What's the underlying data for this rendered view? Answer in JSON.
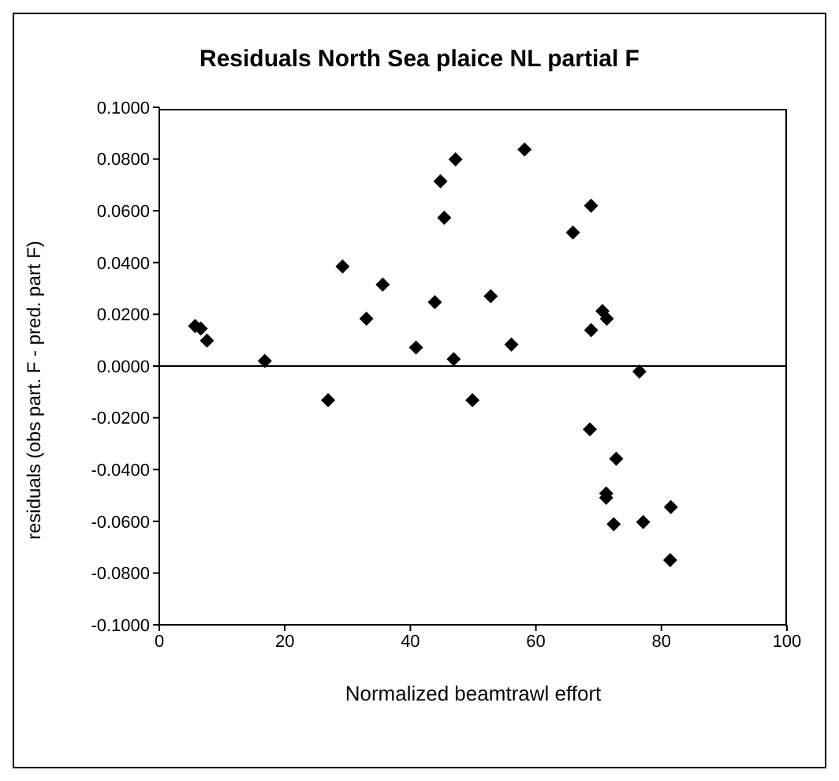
{
  "chart_data": {
    "type": "scatter",
    "title": "Residuals North Sea plaice NL partial F",
    "xlabel": "Normalized beamtrawl effort",
    "ylabel": "residuals (obs part. F - pred. part F)",
    "x": [
      5.7,
      6.6,
      7.6,
      16.8,
      26.9,
      29.2,
      33.0,
      35.6,
      40.9,
      43.9,
      44.8,
      45.4,
      47.2,
      46.9,
      49.9,
      52.8,
      56.1,
      58.2,
      65.9,
      68.8,
      68.8,
      70.6,
      71.3,
      76.5,
      68.6,
      72.8,
      71.2,
      71.2,
      72.4,
      77.1,
      81.5,
      81.4
    ],
    "series": [
      {
        "color": "#000000",
        "values": [
          0.0155,
          0.0145,
          0.0098,
          0.002,
          -0.0132,
          0.0385,
          0.0183,
          0.0315,
          0.0072,
          0.0247,
          0.0714,
          0.0573,
          0.0799,
          0.0027,
          -0.0132,
          0.027,
          0.0083,
          0.0837,
          0.0516,
          0.062,
          0.0139,
          0.0213,
          0.0183,
          -0.0021,
          -0.0245,
          -0.0358,
          -0.0492,
          -0.0509,
          -0.0611,
          -0.0603,
          -0.0545,
          -0.075
        ]
      }
    ],
    "xlim": [
      0,
      100
    ],
    "xticks": [
      0,
      20,
      40,
      60,
      80,
      100
    ],
    "ylim": [
      -0.1,
      0.1
    ],
    "yticks": [
      {
        "value": -0.1,
        "label": "-0.1000"
      },
      {
        "value": -0.08,
        "label": "-0.0800"
      },
      {
        "value": -0.06,
        "label": "-0.0600"
      },
      {
        "value": -0.04,
        "label": "-0.0400"
      },
      {
        "value": -0.02,
        "label": "-0.0200"
      },
      {
        "value": 0,
        "label": "0.0000"
      },
      {
        "value": 0.02,
        "label": "0.0200"
      },
      {
        "value": 0.04,
        "label": "0.0400"
      },
      {
        "value": 0.06,
        "label": "0.0600"
      },
      {
        "value": 0.08,
        "label": "0.0800"
      },
      {
        "value": 0.1,
        "label": "0.1000"
      }
    ],
    "ref_lines": [
      {
        "axis": "y",
        "value": 0,
        "color": "#000000"
      }
    ],
    "marker": "diamond",
    "grid": false,
    "legend": false
  }
}
